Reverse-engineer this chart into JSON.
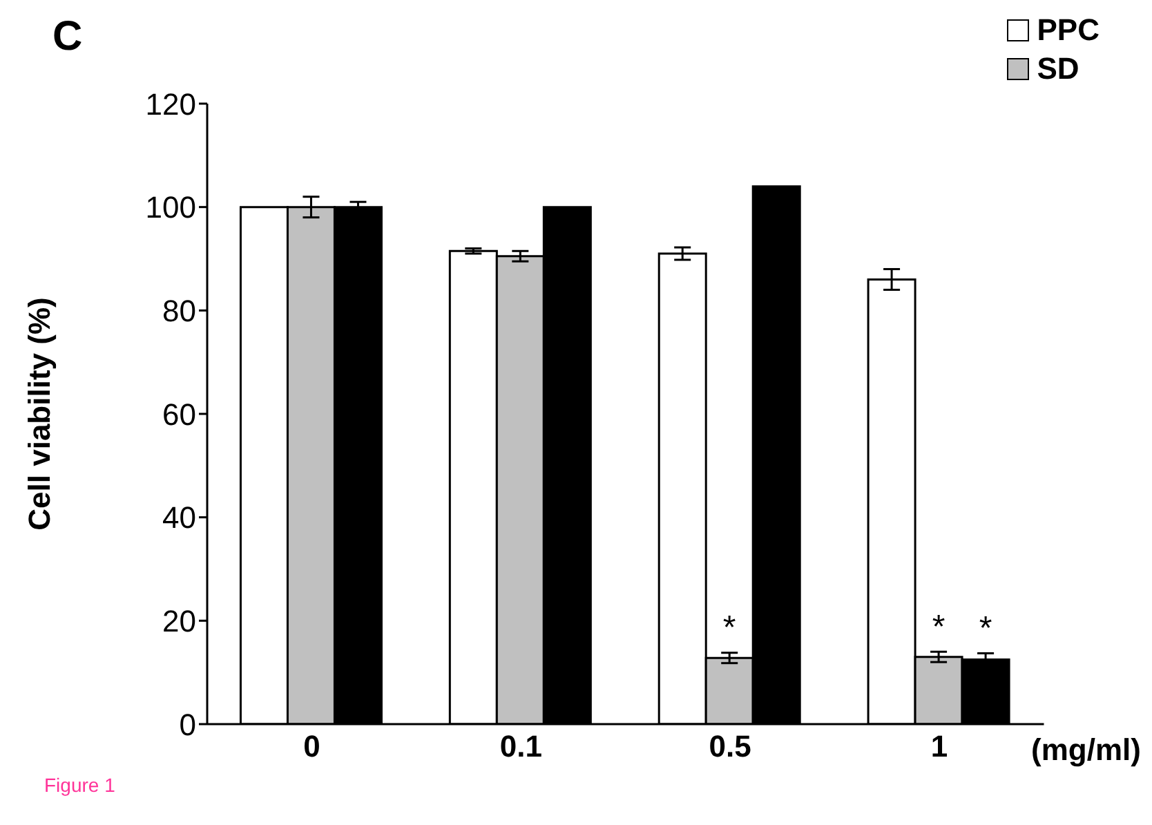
{
  "chart_data": {
    "type": "bar",
    "title": "C",
    "xlabel": "(mg/ml)",
    "ylabel": "Cell viability (%)",
    "categories": [
      "0",
      "0.1",
      "0.5",
      "1"
    ],
    "series": [
      {
        "name": "PPC",
        "color": "#ffffff",
        "values": [
          100,
          91.5,
          91,
          86
        ],
        "errors": [
          null,
          0.5,
          1.2,
          2
        ]
      },
      {
        "name": "SD",
        "color": "#c0c0c0",
        "values": [
          100,
          90.5,
          12.8,
          13
        ],
        "errors": [
          2,
          1,
          1,
          1
        ],
        "value_labels": [
          null,
          null,
          "*",
          "*"
        ]
      },
      {
        "color": "#000000",
        "values": [
          100,
          100,
          104,
          12.5
        ],
        "errors": [
          1,
          null,
          null,
          1.2
        ],
        "value_labels": [
          null,
          null,
          null,
          "*"
        ]
      }
    ],
    "ylim": [
      0,
      120
    ],
    "yticks": [
      0,
      20,
      40,
      60,
      80,
      100,
      120
    ],
    "legend": "top right",
    "annotations": [
      "Figure 1"
    ]
  }
}
